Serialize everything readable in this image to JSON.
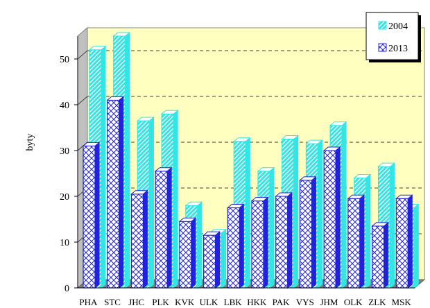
{
  "chart_data": {
    "type": "bar",
    "title": "",
    "xlabel": "",
    "ylabel": "byty",
    "ylim": [
      0,
      55
    ],
    "yticks": [
      0,
      10,
      20,
      30,
      40,
      50
    ],
    "grid": true,
    "legend_position": "top-right",
    "categories": [
      "PHA",
      "STC",
      "JHC",
      "PLK",
      "KVK",
      "ULK",
      "LBK",
      "HKK",
      "PAK",
      "VYS",
      "JHM",
      "OLK",
      "ZLK",
      "MSK"
    ],
    "series": [
      {
        "name": "2004",
        "color": "#33e6e6",
        "values": [
          52,
          55,
          36.5,
          38,
          18,
          12,
          32,
          25.5,
          32.5,
          31.5,
          35.5,
          24,
          26.5,
          17.5
        ]
      },
      {
        "name": "2013",
        "color": "#2222dd",
        "values": [
          31,
          41,
          20.5,
          25.5,
          14.5,
          11.5,
          17.5,
          19,
          20,
          23.5,
          30,
          19.5,
          13.5,
          19.5
        ]
      }
    ]
  },
  "colors": {
    "plot_background": "#ffffc0",
    "floor": "#808080",
    "wall_side": "#c0c0c0",
    "grid_line": "#404040"
  }
}
